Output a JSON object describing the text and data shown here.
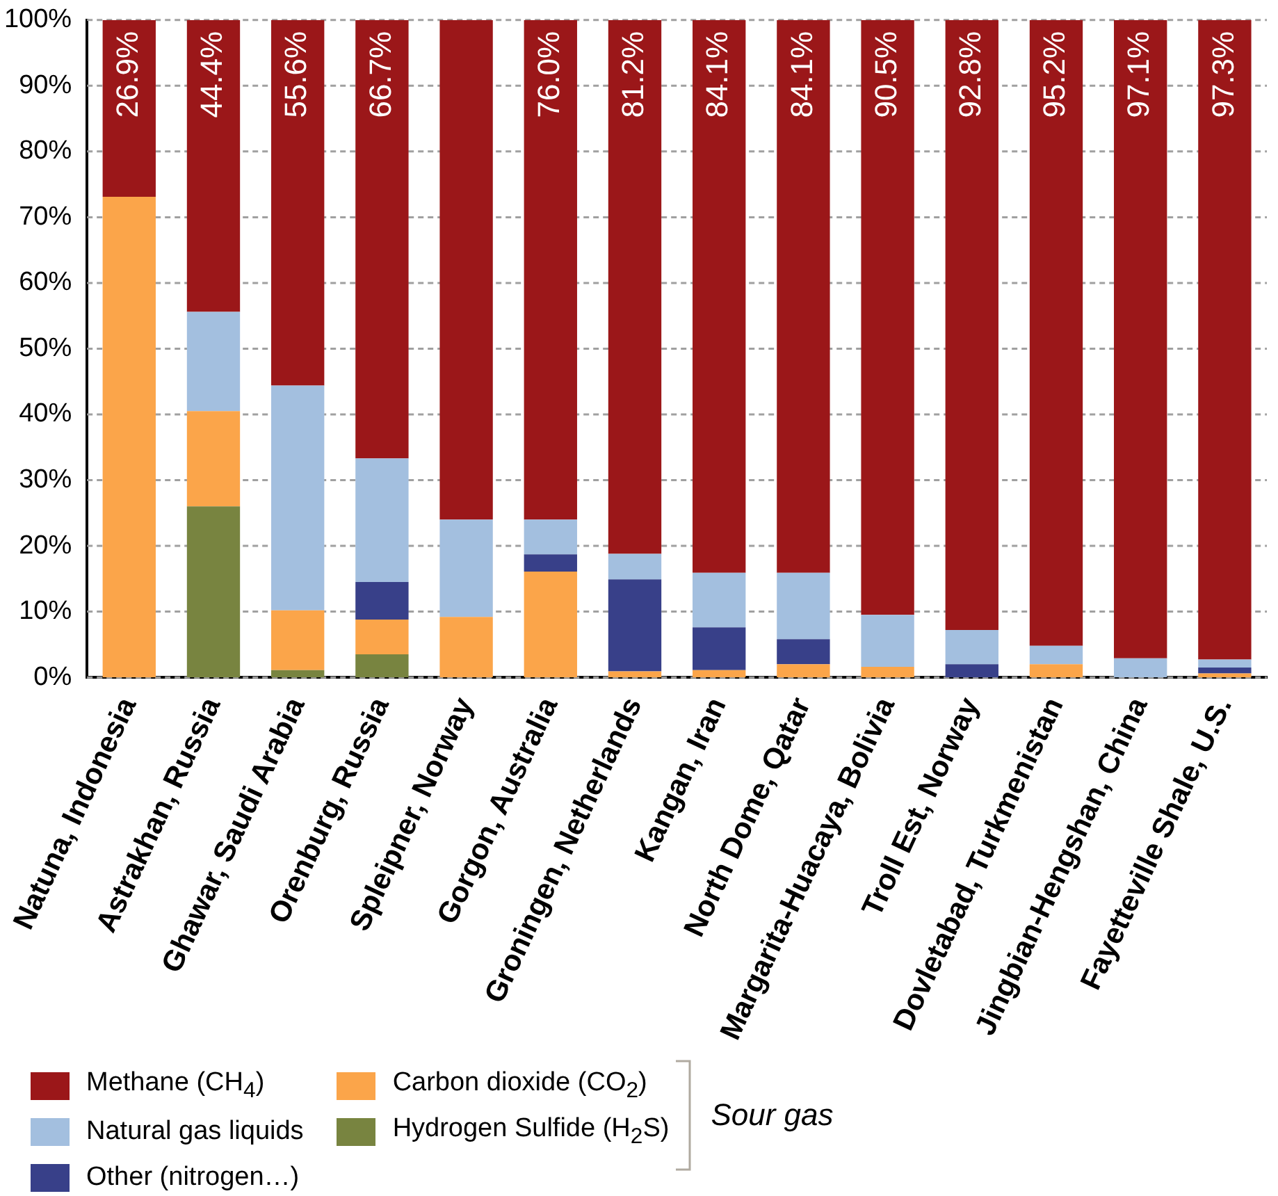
{
  "chart_data": {
    "type": "bar",
    "stacked": true,
    "categories": [
      "Natuna, Indonesia",
      "Astrakhan, Russia",
      "Ghawar, Saudi Arabia",
      "Orenburg, Russia",
      "Spleipner, Norway",
      "Gorgon, Australia",
      "Groningen, Netherlands",
      "Kangan, Iran",
      "North Dome, Qatar",
      "Margarita-Huacaya, Bolivia",
      "Troll Est, Norway",
      "Dovletabad, Turkmenistan",
      "Jingbian-Hengshan, China",
      "Fayetteville Shale, U.S."
    ],
    "series": [
      {
        "name": "Hydrogen Sulfide (H$_{2}$S)",
        "color": "#788440",
        "values": [
          0,
          26.0,
          1.1,
          3.5,
          0,
          0,
          0,
          0,
          0,
          0,
          0,
          0,
          0,
          0
        ]
      },
      {
        "name": "Carbon dioxide (CO$_{2}$)",
        "color": "#fba54a",
        "values": [
          73.1,
          14.5,
          9.1,
          5.3,
          9.2,
          16.1,
          0.9,
          1.1,
          2.0,
          1.6,
          0,
          2.0,
          0,
          0.6
        ]
      },
      {
        "name": "Other (nitrogen…)",
        "color": "#384089",
        "values": [
          0,
          0,
          0,
          5.7,
          0,
          2.6,
          14.0,
          6.5,
          3.8,
          0,
          2.0,
          0,
          0,
          0.9
        ]
      },
      {
        "name": "Natural gas liquids",
        "color": "#a3bfdf",
        "values": [
          0,
          15.1,
          34.2,
          18.8,
          14.8,
          5.3,
          3.9,
          8.3,
          10.1,
          7.9,
          5.2,
          2.8,
          2.9,
          1.2
        ]
      },
      {
        "name": "Methane (CH$_{4}$)",
        "color": "#9b1719",
        "values": [
          26.9,
          44.4,
          55.6,
          66.7,
          76.0,
          76.0,
          81.2,
          84.1,
          84.1,
          90.5,
          92.8,
          95.2,
          97.1,
          97.3
        ],
        "value_labels": [
          "26.9%",
          "44.4%",
          "55.6%",
          "66.7%",
          null,
          "76.0%",
          "81.2%",
          "84.1%",
          "84.1%",
          "90.5%",
          "92.8%",
          "95.2%",
          "97.1%",
          "97.3%"
        ]
      }
    ],
    "ylim": [
      0,
      100
    ],
    "yticks": [
      {
        "value": 0,
        "label": "0%"
      },
      {
        "value": 10,
        "label": "10%"
      },
      {
        "value": 20,
        "label": "20%"
      },
      {
        "value": 30,
        "label": "30%"
      },
      {
        "value": 40,
        "label": "40%"
      },
      {
        "value": 50,
        "label": "50%"
      },
      {
        "value": 60,
        "label": "60%"
      },
      {
        "value": 70,
        "label": "70%"
      },
      {
        "value": 80,
        "label": "80%"
      },
      {
        "value": 90,
        "label": "90%"
      },
      {
        "value": 100,
        "label": "100%"
      }
    ],
    "grid": "y",
    "legend": "bottom",
    "annotations": [
      "Sour gas"
    ]
  }
}
